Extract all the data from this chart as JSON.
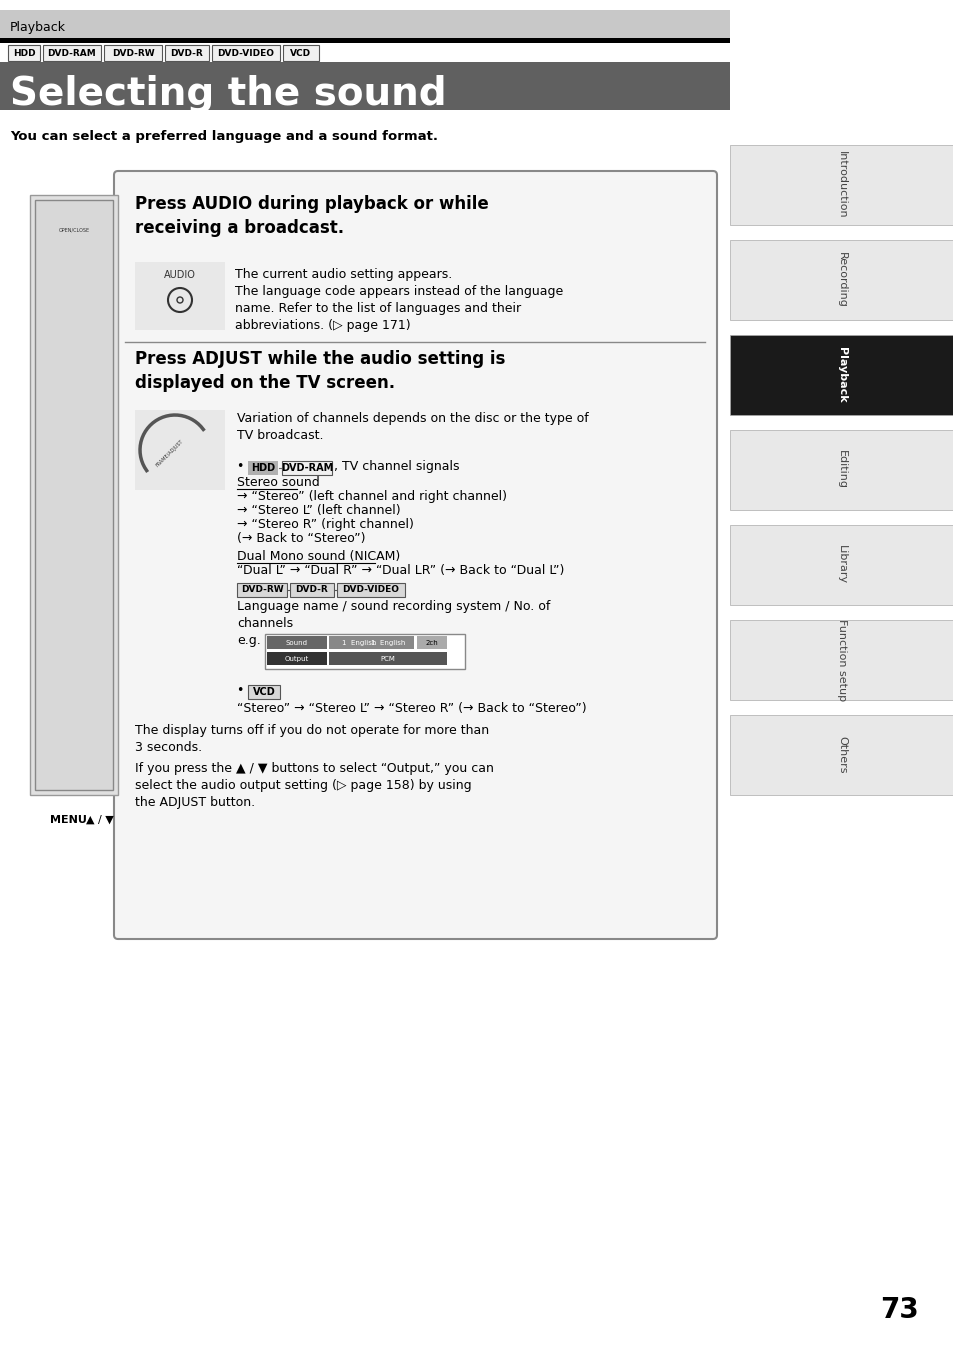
{
  "page_bg": "#ffffff",
  "header_bar_color": "#c0c0c0",
  "header_black_bar": "#000000",
  "title_bar_color": "#606060",
  "title_text": "Selecting the sound",
  "playback_label": "Playback",
  "format_tags": [
    "HDD",
    "DVD-RAM",
    "DVD-RW",
    "DVD-R",
    "DVD-VIDEO",
    "VCD"
  ],
  "subtitle": "You can select a preferred language and a sound format.",
  "right_tab_labels": [
    "Introduction",
    "Recording",
    "Playback",
    "Editing",
    "Library",
    "Function setup",
    "Others"
  ],
  "right_tab_active": "Playback",
  "page_number": "73",
  "section1_heading": "Press AUDIO during playback or while\nreceiving a broadcast.",
  "section1_text1": "The current audio setting appears.",
  "section1_text2": "The language code appears instead of the language\nname. Refer to the list of languages and their\nabbreviations. (▷ page 171)",
  "section2_heading": "Press ADJUST while the audio setting is\ndisplayed on the TV screen.",
  "section2_text1": "Variation of channels depends on the disc or the type of\nTV broadcast.",
  "bullet1_tags": [
    "HDD",
    "DVD-RAM"
  ],
  "bullet1_label": ", TV channel signals",
  "stereo_label": "Stereo sound",
  "stereo_lines": [
    "→ “Stereo” (left channel and right channel)",
    "→ “Stereo L” (left channel)",
    "→ “Stereo R” (right channel)",
    "(→ Back to “Stereo”)"
  ],
  "dual_mono_label": "Dual Mono sound (NICAM)",
  "dual_mono_text": "“Dual L” → “Dual R” → “Dual LR” (→ Back to “Dual L”)",
  "bullet2_tags": [
    "DVD-RW",
    "DVD-R",
    "DVD-VIDEO"
  ],
  "bullet2_text1": "Language name / sound recording system / No. of\nchannels",
  "eg_label": "e.g.",
  "vcd_tag": "VCD",
  "vcd_text": "“Stereo” → “Stereo L” → “Stereo R” (→ Back to “Stereo”)",
  "display_text1": "The display turns off if you do not operate for more than\n3 seconds.",
  "display_text2": "If you press the ▲ / ▼ buttons to select “Output,” you can\nselect the audio output setting (▷ page 158) by using\nthe ADJUST button."
}
